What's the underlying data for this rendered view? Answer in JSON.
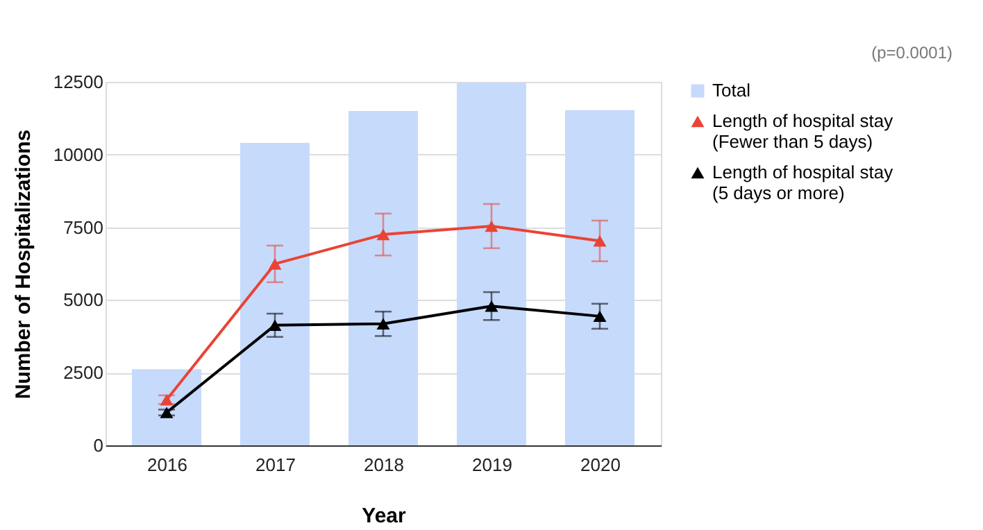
{
  "chart_data": {
    "type": "bar",
    "xlabel": "Year",
    "ylabel": "Number of Hospitalizations",
    "annotations": [
      "(p=0.0001)"
    ],
    "categories": [
      "2016",
      "2017",
      "2018",
      "2019",
      "2020"
    ],
    "series": [
      {
        "name": "Total",
        "color": "#c6dafc",
        "values": [
          2620,
          10400,
          11500,
          12470,
          11530
        ]
      },
      {
        "name": "Length of hospital stay (Fewer than 5 days)",
        "type": "line",
        "color": "#ea4335",
        "values": [
          1570,
          6240,
          7250,
          7540,
          7030
        ],
        "errors": [
          150,
          630,
          720,
          760,
          700
        ]
      },
      {
        "name": "Length of hospital stay (5 days or more)",
        "type": "line",
        "color": "#000000",
        "values": [
          1130,
          4130,
          4180,
          4790,
          4440
        ],
        "errors": [
          100,
          400,
          420,
          480,
          430
        ]
      }
    ],
    "ylim": [
      0,
      12500
    ],
    "yticks": [
      0,
      2500,
      5000,
      7500,
      10000,
      12500
    ],
    "grid": "y",
    "legend": "top right",
    "marker": "triangle"
  }
}
